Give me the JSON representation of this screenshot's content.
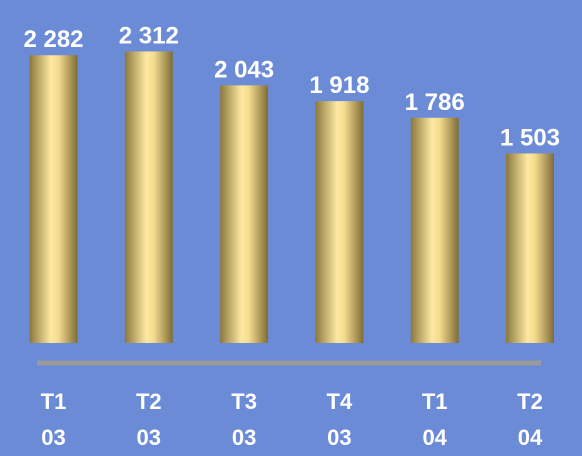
{
  "chart_data": {
    "type": "bar",
    "categories": [
      "T1 03",
      "T2 03",
      "T3 03",
      "T4 03",
      "T1 04",
      "T2 04"
    ],
    "values": [
      2282,
      2312,
      2043,
      1918,
      1786,
      1503
    ],
    "value_labels": [
      "2 282",
      "2 312",
      "2 043",
      "1 918",
      "1 786",
      "1 503"
    ],
    "color": "#ffe9a0",
    "ylim": [
      0,
      2720
    ]
  }
}
